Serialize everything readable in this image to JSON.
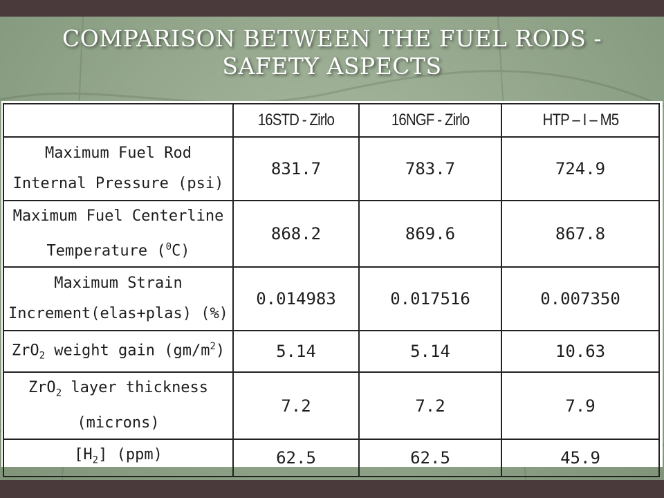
{
  "slide": {
    "title": "Comparison between the fuel rods - Safety Aspects"
  },
  "table": {
    "headers": [
      "",
      "16STD - Zirlo",
      "16NGF - Zirlo",
      "HTP – I – M5"
    ],
    "rows": [
      {
        "label_line1": "Maximum Fuel Rod",
        "label_line2": "Internal Pressure (psi)",
        "values": [
          "831.7",
          "783.7",
          "724.9"
        ]
      },
      {
        "label_line1": "Maximum Fuel Centerline",
        "label_line2_pre": "Temperature (",
        "label_line2_sup": "0",
        "label_line2_post": "C)",
        "values": [
          "868.2",
          "869.6",
          "867.8"
        ]
      },
      {
        "label_line1": "Maximum Strain",
        "label_line2": "Increment(elas+plas) (%)",
        "values": [
          "0.014983",
          "0.017516",
          "0.007350"
        ]
      },
      {
        "label_pre": "ZrO",
        "label_sub": "2",
        "label_mid": " weight gain (gm/m",
        "label_sup": "2",
        "label_post": ")",
        "values": [
          "5.14",
          "5.14",
          "10.63"
        ]
      },
      {
        "label_pre": "ZrO",
        "label_sub": "2",
        "label_mid": " layer thickness",
        "label_line2": "(microns)",
        "values": [
          "7.2",
          "7.2",
          "7.9"
        ]
      },
      {
        "label_pre": "[H",
        "label_sub": "2",
        "label_post": "] (ppm)",
        "values": [
          "62.5",
          "62.5",
          "45.9"
        ]
      }
    ]
  }
}
